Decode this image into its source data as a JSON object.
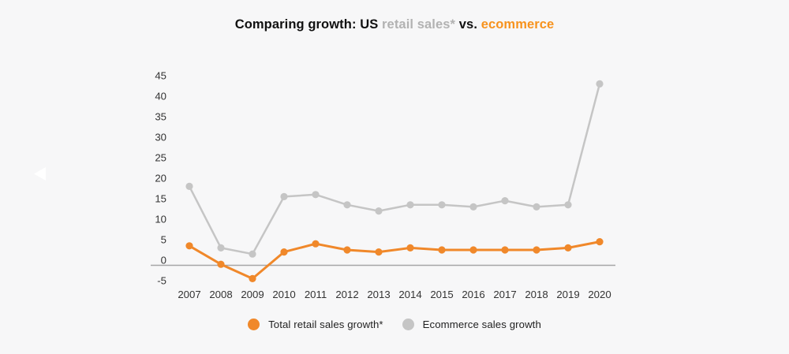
{
  "title": {
    "prefix": "Comparing growth: US ",
    "retail": "retail sales*",
    "vs": " vs. ",
    "ecommerce": "ecommerce"
  },
  "colors": {
    "background": "#f7f7f8",
    "retail_orange": "#f0882a",
    "ecommerce_gray": "#c5c5c5",
    "title_text": "#111111",
    "title_muted_gray": "#b2b2b2",
    "title_orange": "#f7931e",
    "axis_text": "#333333",
    "zero_line": "#a6a6a6",
    "prev_arrow": "#ffffff"
  },
  "carousel": {
    "prev_arrow_name": "previous"
  },
  "chart_data": {
    "type": "line",
    "categories": [
      "2007",
      "2008",
      "2009",
      "2010",
      "2011",
      "2012",
      "2013",
      "2014",
      "2015",
      "2016",
      "2017",
      "2018",
      "2019",
      "2020"
    ],
    "series": [
      {
        "name": "Total retail sales growth*",
        "color_key": "retail_orange",
        "values": [
          3.5,
          -1,
          -4.5,
          2,
          4,
          2.5,
          2,
          3,
          2.5,
          2.5,
          2.5,
          2.5,
          3,
          4.5
        ]
      },
      {
        "name": "Ecommerce sales growth",
        "color_key": "ecommerce_gray",
        "values": [
          18,
          3,
          1.5,
          15.5,
          16,
          13.5,
          12,
          13.5,
          13.5,
          13,
          14.5,
          13,
          13.5,
          43
        ]
      }
    ],
    "y_ticks": [
      45,
      40,
      35,
      30,
      25,
      20,
      15,
      10,
      5,
      0,
      -5
    ],
    "ylim": [
      -5,
      45
    ],
    "unit": "percent",
    "grid": false,
    "zero_baseline": true,
    "legend_position": "bottom"
  }
}
